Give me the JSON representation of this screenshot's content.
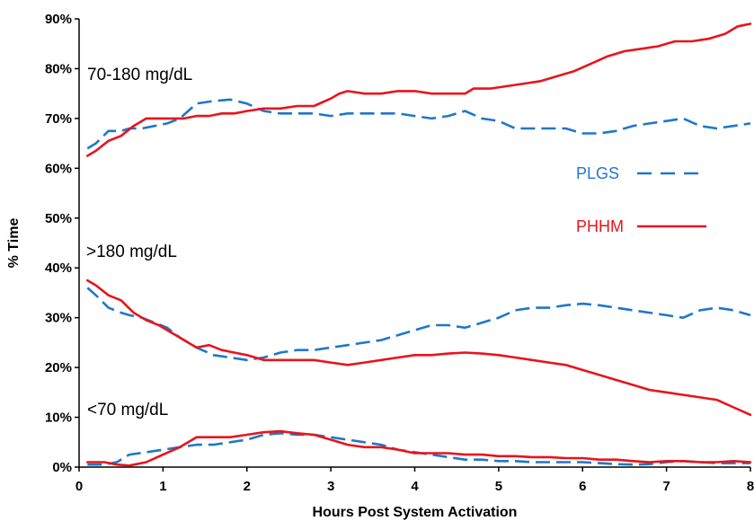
{
  "chart_data": {
    "type": "line",
    "xlabel": "Hours Post System Activation",
    "ylabel": "% Time",
    "xlim": [
      0,
      8
    ],
    "ylim": [
      0,
      90
    ],
    "x_ticks": [
      "0",
      "1",
      "2",
      "3",
      "4",
      "5",
      "6",
      "7",
      "8"
    ],
    "y_ticks": [
      "0%",
      "10%",
      "20%",
      "30%",
      "40%",
      "50%",
      "60%",
      "70%",
      "80%",
      "90%"
    ],
    "grid": false,
    "legend_position": "right-middle",
    "annotations": [
      "70-180 mg/dL",
      ">180 mg/dL",
      "<70 mg/dL"
    ],
    "series": [
      {
        "name": "PLGS",
        "color": "#1f77c8",
        "dash": "dashed",
        "groups": [
          {
            "band": "70-180 mg/dL",
            "x": [
              0.1,
              0.2,
              0.35,
              0.5,
              0.6,
              0.75,
              0.9,
              1.05,
              1.2,
              1.4,
              1.6,
              1.8,
              2.0,
              2.2,
              2.4,
              2.6,
              2.8,
              3.0,
              3.2,
              3.4,
              3.6,
              3.8,
              4.0,
              4.2,
              4.4,
              4.6,
              4.8,
              5.0,
              5.2,
              5.4,
              5.6,
              5.8,
              6.0,
              6.2,
              6.4,
              6.6,
              6.8,
              7.0,
              7.2,
              7.4,
              7.6,
              7.8,
              8.0
            ],
            "y": [
              64,
              65,
              67.5,
              67.5,
              68,
              68,
              68.5,
              69,
              70,
              73,
              73.5,
              73.8,
              73,
              71.5,
              71,
              71,
              71,
              70.5,
              71,
              71,
              71,
              71,
              70.5,
              70,
              70.5,
              71.5,
              70,
              69.5,
              68,
              68,
              68,
              68,
              67,
              67,
              67.5,
              68.5,
              69,
              69.5,
              70,
              68.5,
              68,
              68.5,
              69
            ]
          },
          {
            "band": ">180 mg/dL",
            "x": [
              0.1,
              0.2,
              0.35,
              0.5,
              0.6,
              0.75,
              0.9,
              1.05,
              1.2,
              1.4,
              1.6,
              1.8,
              2.0,
              2.2,
              2.4,
              2.6,
              2.8,
              3.0,
              3.2,
              3.4,
              3.6,
              3.8,
              4.0,
              4.2,
              4.4,
              4.6,
              4.8,
              5.0,
              5.2,
              5.4,
              5.6,
              5.8,
              6.0,
              6.2,
              6.4,
              6.6,
              6.8,
              7.0,
              7.2,
              7.4,
              7.6,
              7.8,
              8.0
            ],
            "y": [
              36,
              34.5,
              32,
              31,
              30.5,
              30,
              29,
              28,
              26,
              24,
              22.5,
              22,
              21.5,
              22,
              23,
              23.5,
              23.5,
              24,
              24.5,
              25,
              25.5,
              26.5,
              27.5,
              28.5,
              28.5,
              28,
              29,
              30,
              31.5,
              32,
              32,
              32.5,
              32.8,
              32.5,
              32,
              31.5,
              31,
              30.5,
              30,
              31.5,
              32,
              31.5,
              30.5
            ]
          },
          {
            "band": "<70 mg/dL",
            "x": [
              0.1,
              0.3,
              0.45,
              0.6,
              0.8,
              1.0,
              1.2,
              1.4,
              1.6,
              1.8,
              2.0,
              2.2,
              2.4,
              2.6,
              2.8,
              3.0,
              3.2,
              3.4,
              3.6,
              3.8,
              4.0,
              4.2,
              4.4,
              4.6,
              4.8,
              5.0,
              5.2,
              5.4,
              5.6,
              5.8,
              6.0,
              6.2,
              6.4,
              6.6,
              6.8,
              7.0,
              7.2,
              7.4,
              7.6,
              7.8,
              8.0
            ],
            "y": [
              0.5,
              0.5,
              1.0,
              2.5,
              3.0,
              3.5,
              4.0,
              4.5,
              4.5,
              5.0,
              5.5,
              6.5,
              6.8,
              6.5,
              6.5,
              6.0,
              5.5,
              5.0,
              4.5,
              3.5,
              3.0,
              2.5,
              2.0,
              1.5,
              1.5,
              1.2,
              1.2,
              1.0,
              1.0,
              1.0,
              1.0,
              0.8,
              0.6,
              0.5,
              0.6,
              1.0,
              1.2,
              1.0,
              0.8,
              0.8,
              0.8
            ]
          }
        ]
      },
      {
        "name": "PHHM",
        "color": "#e8141c",
        "dash": "solid",
        "groups": [
          {
            "band": "70-180 mg/dL",
            "x": [
              0.1,
              0.2,
              0.35,
              0.5,
              0.65,
              0.8,
              0.95,
              1.1,
              1.25,
              1.4,
              1.55,
              1.7,
              1.85,
              2.0,
              2.2,
              2.4,
              2.6,
              2.8,
              3.0,
              3.1,
              3.2,
              3.4,
              3.6,
              3.8,
              4.0,
              4.2,
              4.4,
              4.6,
              4.7,
              4.9,
              5.1,
              5.3,
              5.5,
              5.7,
              5.9,
              6.1,
              6.3,
              6.5,
              6.7,
              6.9,
              7.1,
              7.3,
              7.5,
              7.7,
              7.85,
              8.0
            ],
            "y": [
              62.5,
              63.5,
              65.5,
              66.5,
              68.5,
              70,
              70,
              70,
              70,
              70.5,
              70.5,
              71,
              71,
              71.5,
              72,
              72,
              72.5,
              72.5,
              74,
              75,
              75.5,
              75,
              75,
              75.5,
              75.5,
              75,
              75,
              75,
              76,
              76,
              76.5,
              77,
              77.5,
              78.5,
              79.5,
              81,
              82.5,
              83.5,
              84,
              84.5,
              85.5,
              85.5,
              86,
              87,
              88.5,
              89
            ]
          },
          {
            "band": ">180 mg/dL",
            "x": [
              0.1,
              0.2,
              0.35,
              0.5,
              0.65,
              0.8,
              0.95,
              1.1,
              1.25,
              1.4,
              1.55,
              1.7,
              1.85,
              2.0,
              2.2,
              2.4,
              2.6,
              2.8,
              3.0,
              3.2,
              3.4,
              3.6,
              3.8,
              4.0,
              4.2,
              4.4,
              4.6,
              4.8,
              5.0,
              5.2,
              5.4,
              5.6,
              5.8,
              6.0,
              6.2,
              6.4,
              6.6,
              6.8,
              7.0,
              7.2,
              7.4,
              7.6,
              7.8,
              8.0
            ],
            "y": [
              37.5,
              36.5,
              34.5,
              33.5,
              31,
              29.5,
              28.5,
              27,
              25.5,
              24,
              24.5,
              23.5,
              23,
              22.5,
              21.5,
              21.5,
              21.5,
              21.5,
              21,
              20.5,
              21,
              21.5,
              22,
              22.5,
              22.5,
              22.8,
              23,
              22.8,
              22.5,
              22,
              21.5,
              21,
              20.5,
              19.5,
              18.5,
              17.5,
              16.5,
              15.5,
              15,
              14.5,
              14,
              13.5,
              12,
              10.5
            ]
          },
          {
            "band": "<70 mg/dL",
            "x": [
              0.1,
              0.3,
              0.45,
              0.6,
              0.8,
              1.0,
              1.2,
              1.4,
              1.6,
              1.8,
              2.0,
              2.2,
              2.4,
              2.6,
              2.8,
              3.0,
              3.2,
              3.4,
              3.6,
              3.8,
              4.0,
              4.2,
              4.4,
              4.6,
              4.8,
              5.0,
              5.2,
              5.4,
              5.6,
              5.8,
              6.0,
              6.2,
              6.4,
              6.6,
              6.8,
              7.0,
              7.2,
              7.4,
              7.6,
              7.8,
              8.0
            ],
            "y": [
              1.0,
              1.0,
              0.5,
              0.3,
              1.0,
              2.5,
              4.0,
              6.0,
              6.0,
              6.0,
              6.5,
              7.0,
              7.2,
              6.8,
              6.5,
              5.5,
              4.5,
              4.0,
              4.0,
              3.5,
              2.8,
              2.8,
              2.8,
              2.5,
              2.5,
              2.2,
              2.2,
              2.0,
              2.0,
              1.8,
              1.8,
              1.5,
              1.5,
              1.2,
              1.0,
              1.2,
              1.2,
              1.0,
              1.0,
              1.2,
              1.0
            ]
          }
        ]
      }
    ]
  }
}
